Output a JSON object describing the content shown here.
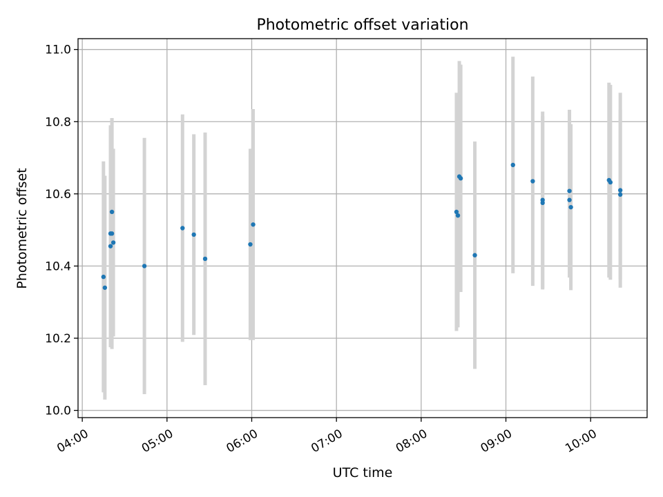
{
  "chart_data": {
    "type": "scatter",
    "title": "Photometric offset variation",
    "xlabel": "UTC time",
    "ylabel": "Photometric offset",
    "x_ticks": [
      "04:00",
      "05:00",
      "06:00",
      "07:00",
      "08:00",
      "09:00",
      "10:00"
    ],
    "y_ticks": [
      "10.0",
      "10.2",
      "10.4",
      "10.6",
      "10.8",
      "11.0"
    ],
    "xlim": [
      "03:57",
      "10:40"
    ],
    "ylim": [
      9.98,
      11.03
    ],
    "grid": true,
    "colors": {
      "point": "#1f77b4",
      "errorbar": "#d3d3d3"
    },
    "series": [
      {
        "points": [
          {
            "x": "04:15",
            "y": 10.37,
            "yerr": 0.32
          },
          {
            "x": "04:16",
            "y": 10.34,
            "yerr": 0.31
          },
          {
            "x": "04:20",
            "y": 10.49,
            "yerr": 0.3
          },
          {
            "x": "04:20",
            "y": 10.455,
            "yerr": 0.28
          },
          {
            "x": "04:21",
            "y": 10.49,
            "yerr": 0.32
          },
          {
            "x": "04:21",
            "y": 10.55,
            "yerr": 0.26
          },
          {
            "x": "04:22",
            "y": 10.465,
            "yerr": 0.26
          },
          {
            "x": "04:44",
            "y": 10.4,
            "yerr": 0.355
          },
          {
            "x": "05:11",
            "y": 10.505,
            "yerr": 0.315
          },
          {
            "x": "05:19",
            "y": 10.487,
            "yerr": 0.278
          },
          {
            "x": "05:27",
            "y": 10.42,
            "yerr": 0.35
          },
          {
            "x": "05:59",
            "y": 10.46,
            "yerr": 0.265
          },
          {
            "x": "06:01",
            "y": 10.515,
            "yerr": 0.32
          },
          {
            "x": "08:25",
            "y": 10.55,
            "yerr": 0.33
          },
          {
            "x": "08:26",
            "y": 10.54,
            "yerr": 0.31
          },
          {
            "x": "08:27",
            "y": 10.648,
            "yerr": 0.32
          },
          {
            "x": "08:28",
            "y": 10.643,
            "yerr": 0.315
          },
          {
            "x": "08:38",
            "y": 10.43,
            "yerr": 0.315
          },
          {
            "x": "09:05",
            "y": 10.68,
            "yerr": 0.3
          },
          {
            "x": "09:19",
            "y": 10.635,
            "yerr": 0.29
          },
          {
            "x": "09:26",
            "y": 10.583,
            "yerr": 0.245
          },
          {
            "x": "09:26",
            "y": 10.575,
            "yerr": 0.24
          },
          {
            "x": "09:45",
            "y": 10.608,
            "yerr": 0.225
          },
          {
            "x": "09:45",
            "y": 10.583,
            "yerr": 0.215
          },
          {
            "x": "09:46",
            "y": 10.563,
            "yerr": 0.23
          },
          {
            "x": "10:13",
            "y": 10.638,
            "yerr": 0.27
          },
          {
            "x": "10:14",
            "y": 10.632,
            "yerr": 0.27
          },
          {
            "x": "10:21",
            "y": 10.61,
            "yerr": 0.27
          },
          {
            "x": "10:21",
            "y": 10.598,
            "yerr": 0.235
          }
        ]
      }
    ]
  }
}
